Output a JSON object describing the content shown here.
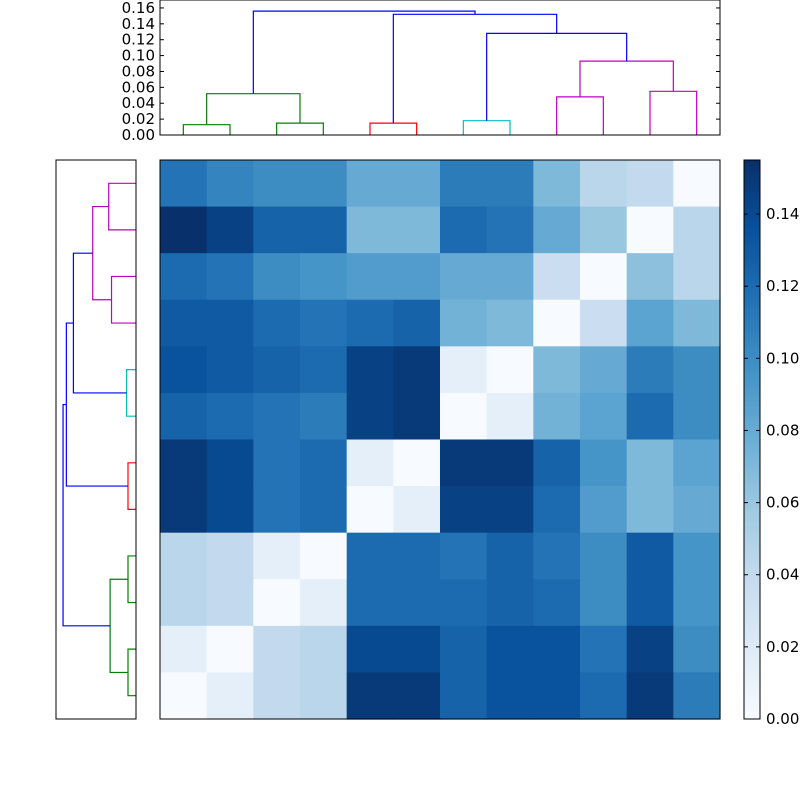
{
  "chart_data": [
    {
      "type": "heatmap",
      "title": "",
      "xlabel": "",
      "ylabel": "",
      "row_leaf_order_top_to_bottom": [
        9,
        8,
        11,
        10,
        5,
        4,
        3,
        2,
        1,
        0,
        7,
        6
      ],
      "column_leaf_order_left_to_right": [
        0,
        1,
        2,
        3,
        4,
        5,
        6,
        7,
        8,
        9,
        10,
        11
      ],
      "color_scale": {
        "cmap": "Blues",
        "vmin": 0.0,
        "vmax": 0.155,
        "stops": [
          "#f7fbff",
          "#deebf7",
          "#c6dbef",
          "#9ecae1",
          "#6baed6",
          "#4292c6",
          "#2171b5",
          "#08519c",
          "#08306b"
        ]
      },
      "values": [
        [
          0.115,
          0.105,
          0.1,
          0.1,
          0.08,
          0.08,
          0.11,
          0.11,
          0.07,
          0.045,
          0.04,
          0.0
        ],
        [
          0.155,
          0.145,
          0.125,
          0.125,
          0.07,
          0.07,
          0.12,
          0.115,
          0.08,
          0.06,
          0.0,
          0.045
        ],
        [
          0.12,
          0.115,
          0.1,
          0.095,
          0.09,
          0.09,
          0.08,
          0.08,
          0.035,
          0.0,
          0.065,
          0.045
        ],
        [
          0.13,
          0.13,
          0.12,
          0.115,
          0.12,
          0.125,
          0.075,
          0.07,
          0.0,
          0.035,
          0.085,
          0.07
        ],
        [
          0.135,
          0.13,
          0.125,
          0.12,
          0.145,
          0.15,
          0.015,
          0.0,
          0.07,
          0.08,
          0.11,
          0.1
        ],
        [
          0.125,
          0.12,
          0.115,
          0.11,
          0.145,
          0.15,
          0.0,
          0.015,
          0.075,
          0.085,
          0.12,
          0.1
        ],
        [
          0.15,
          0.14,
          0.115,
          0.12,
          0.015,
          0.0,
          0.15,
          0.15,
          0.125,
          0.095,
          0.07,
          0.085
        ],
        [
          0.15,
          0.14,
          0.115,
          0.12,
          0.0,
          0.015,
          0.145,
          0.145,
          0.12,
          0.09,
          0.07,
          0.08
        ],
        [
          0.045,
          0.04,
          0.015,
          0.0,
          0.12,
          0.12,
          0.115,
          0.125,
          0.115,
          0.1,
          0.13,
          0.095
        ],
        [
          0.045,
          0.04,
          0.0,
          0.015,
          0.12,
          0.12,
          0.12,
          0.125,
          0.12,
          0.1,
          0.13,
          0.095
        ],
        [
          0.015,
          0.0,
          0.04,
          0.045,
          0.14,
          0.14,
          0.125,
          0.135,
          0.135,
          0.115,
          0.145,
          0.1
        ],
        [
          0.0,
          0.015,
          0.04,
          0.045,
          0.15,
          0.15,
          0.125,
          0.135,
          0.135,
          0.12,
          0.15,
          0.11
        ]
      ]
    },
    {
      "type": "dendrogram",
      "orientation": "top",
      "leaf_count": 12,
      "ylim": [
        0,
        0.17
      ],
      "yticks": [
        "0.00",
        "0.02",
        "0.04",
        "0.06",
        "0.08",
        "0.10",
        "0.12",
        "0.14",
        "0.16"
      ],
      "yticks_values": [
        0.0,
        0.02,
        0.04,
        0.06,
        0.08,
        0.1,
        0.12,
        0.14,
        0.16
      ],
      "links": [
        {
          "left": 0,
          "right": 1,
          "height": 0.013,
          "color": "#008000"
        },
        {
          "left": 2,
          "right": 3,
          "height": 0.015,
          "color": "#008000"
        },
        {
          "left": "0+1",
          "right": "2+3",
          "height": 0.052,
          "color": "#008000"
        },
        {
          "left": 4,
          "right": 5,
          "height": 0.015,
          "color": "#ff0000"
        },
        {
          "left": 6,
          "right": 7,
          "height": 0.018,
          "color": "#00bfbf"
        },
        {
          "left": 8,
          "right": 9,
          "height": 0.048,
          "color": "#bf00bf"
        },
        {
          "left": 10,
          "right": 11,
          "height": 0.055,
          "color": "#bf00bf"
        },
        {
          "left": "8+9",
          "right": "10+11",
          "height": 0.093,
          "color": "#bf00bf"
        },
        {
          "left": "6+7",
          "right": "8..11",
          "height": 0.128,
          "color": "#0000ff"
        },
        {
          "left": "4+5",
          "right": "6..11",
          "height": 0.152,
          "color": "#0000ff"
        },
        {
          "left": "0..3",
          "right": "4..11",
          "height": 0.156,
          "color": "#0000ff"
        }
      ]
    },
    {
      "type": "dendrogram",
      "orientation": "left",
      "leaf_count": 12,
      "height_max": 0.17,
      "leaf_order_top_to_bottom": [
        9,
        8,
        11,
        10,
        5,
        4,
        3,
        2,
        1,
        0,
        7,
        6
      ],
      "links": [
        {
          "left": 9,
          "right": 8,
          "height": 0.058,
          "color": "#bf00bf"
        },
        {
          "left": 11,
          "right": 10,
          "height": 0.052,
          "color": "#bf00bf"
        },
        {
          "left": "9+8",
          "right": "11+10",
          "height": 0.092,
          "color": "#bf00bf"
        },
        {
          "left": 5,
          "right": 4,
          "height": 0.02,
          "color": "#00bfbf"
        },
        {
          "left": "9..10",
          "right": "5+4",
          "height": 0.133,
          "color": "#0000ff"
        },
        {
          "left": 3,
          "right": 2,
          "height": 0.017,
          "color": "#ff0000"
        },
        {
          "left": "9..4",
          "right": "3+2",
          "height": 0.148,
          "color": "#0000ff"
        },
        {
          "left": 1,
          "right": 0,
          "height": 0.017,
          "color": "#008000"
        },
        {
          "left": 7,
          "right": 6,
          "height": 0.017,
          "color": "#008000"
        },
        {
          "left": "1+0",
          "right": "7+6",
          "height": 0.055,
          "color": "#008000"
        },
        {
          "left": "9..2",
          "right": "1..6",
          "height": 0.155,
          "color": "#0000ff"
        }
      ]
    },
    {
      "type": "colorbar",
      "ticks": [
        "0.00",
        "0.02",
        "0.04",
        "0.06",
        "0.08",
        "0.10",
        "0.12",
        "0.14"
      ],
      "ticks_values": [
        0.0,
        0.02,
        0.04,
        0.06,
        0.08,
        0.1,
        0.12,
        0.14
      ],
      "vmin": 0.0,
      "vmax": 0.155
    }
  ]
}
